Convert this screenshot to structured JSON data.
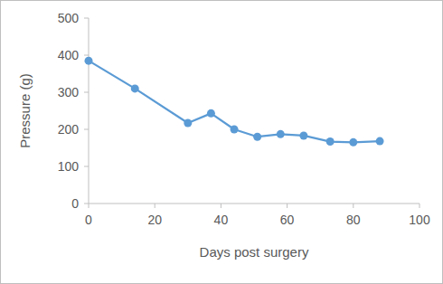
{
  "chart_data": {
    "type": "line",
    "x_label": "Days post surgery",
    "y_label": "Pressure (g)",
    "x": [
      0,
      14,
      30,
      37,
      44,
      51,
      58,
      65,
      73,
      80,
      88
    ],
    "values": [
      385,
      310,
      217,
      243,
      200,
      180,
      187,
      183,
      167,
      165,
      168
    ],
    "color": "#5b9bd5",
    "marker": "circle",
    "line_style": "solid",
    "xlim": [
      0,
      100
    ],
    "xticks": [
      0,
      20,
      40,
      60,
      80,
      100
    ],
    "ylim": [
      0,
      500
    ],
    "yticks": [
      0,
      100,
      200,
      300,
      400,
      500
    ],
    "grid": false
  }
}
